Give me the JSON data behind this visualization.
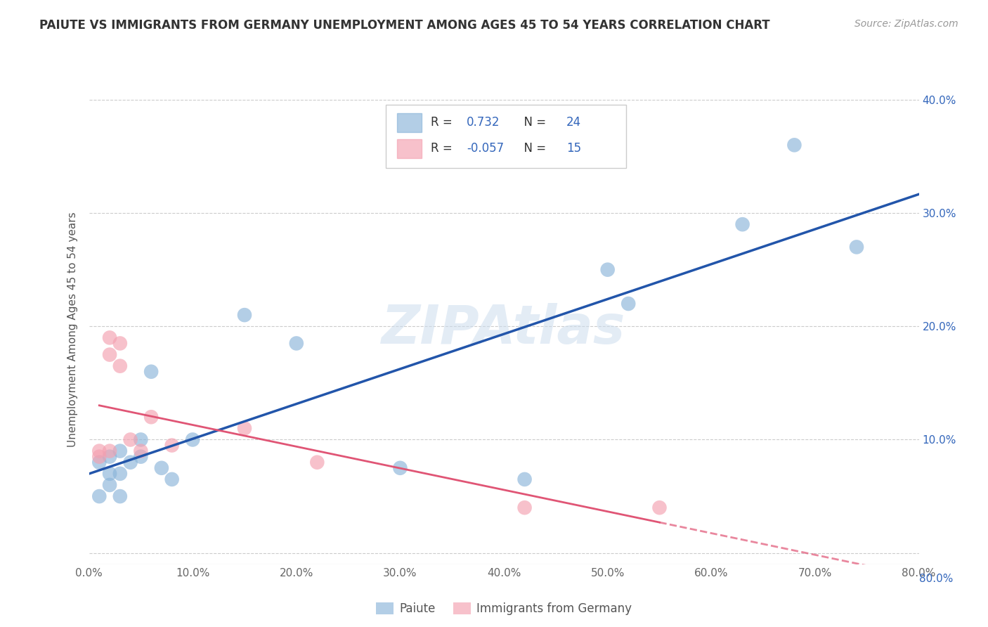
{
  "title": "PAIUTE VS IMMIGRANTS FROM GERMANY UNEMPLOYMENT AMONG AGES 45 TO 54 YEARS CORRELATION CHART",
  "source": "Source: ZipAtlas.com",
  "ylabel": "Unemployment Among Ages 45 to 54 years",
  "xlim": [
    0.0,
    0.8
  ],
  "ylim": [
    -0.01,
    0.4
  ],
  "xticks": [
    0.0,
    0.1,
    0.2,
    0.3,
    0.4,
    0.5,
    0.6,
    0.7,
    0.8
  ],
  "yticks": [
    0.0,
    0.1,
    0.2,
    0.3,
    0.4
  ],
  "xtick_labels": [
    "0.0%",
    "10.0%",
    "20.0%",
    "30.0%",
    "40.0%",
    "50.0%",
    "60.0%",
    "70.0%",
    "80.0%"
  ],
  "ytick_labels": [
    "",
    "10.0%",
    "20.0%",
    "30.0%",
    "40.0%"
  ],
  "legend_bottom": [
    "Paiute",
    "Immigrants from Germany"
  ],
  "paiute_R": "0.732",
  "paiute_N": "24",
  "germany_R": "-0.057",
  "germany_N": "15",
  "paiute_color": "#8ab4d9",
  "germany_color": "#f4a0b0",
  "paiute_line_color": "#2255aa",
  "germany_line_color": "#e05575",
  "paiute_x": [
    0.01,
    0.01,
    0.02,
    0.02,
    0.02,
    0.03,
    0.03,
    0.03,
    0.04,
    0.05,
    0.05,
    0.06,
    0.07,
    0.08,
    0.1,
    0.15,
    0.2,
    0.3,
    0.42,
    0.5,
    0.52,
    0.63,
    0.68,
    0.74
  ],
  "paiute_y": [
    0.05,
    0.08,
    0.06,
    0.07,
    0.085,
    0.05,
    0.07,
    0.09,
    0.08,
    0.085,
    0.1,
    0.16,
    0.075,
    0.065,
    0.1,
    0.21,
    0.185,
    0.075,
    0.065,
    0.25,
    0.22,
    0.29,
    0.36,
    0.27
  ],
  "germany_x": [
    0.01,
    0.01,
    0.02,
    0.02,
    0.02,
    0.03,
    0.03,
    0.04,
    0.05,
    0.06,
    0.08,
    0.15,
    0.22,
    0.42,
    0.55
  ],
  "germany_y": [
    0.085,
    0.09,
    0.09,
    0.175,
    0.19,
    0.185,
    0.165,
    0.1,
    0.09,
    0.12,
    0.095,
    0.11,
    0.08,
    0.04,
    0.04
  ]
}
